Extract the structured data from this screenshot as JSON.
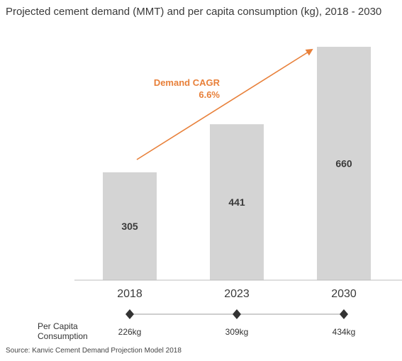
{
  "title": "Projected cement demand (MMT) and per capita consumption (kg), 2018 - 2030",
  "chart_data": {
    "type": "bar",
    "title": "Projected cement demand (MMT) and per capita consumption (kg), 2018 - 2030",
    "categories": [
      "2018",
      "2023",
      "2030"
    ],
    "values": [
      305,
      441,
      660
    ],
    "value_labels": [
      "305",
      "441",
      "660"
    ],
    "bar_color": "#d4d4d4",
    "annotation": {
      "line1": "Demand CAGR",
      "line2": "6.6%",
      "color": "#e8803a"
    },
    "per_capita": {
      "label_line1": "Per Capita",
      "label_line2": "Consumption",
      "values": [
        "226kg",
        "309kg",
        "434kg"
      ]
    }
  },
  "source": "Source: Kanvic Cement Demand Projection Model 2018"
}
